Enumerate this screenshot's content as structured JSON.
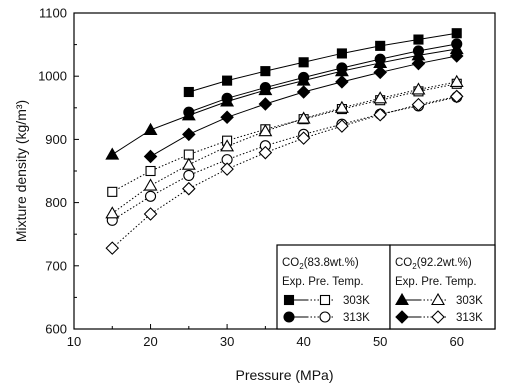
{
  "chart_data": {
    "type": "line",
    "xlabel": "Pressure (MPa)",
    "ylabel": "Mixture density (kg/m³)",
    "xlim": [
      10,
      65
    ],
    "ylim": [
      600,
      1100
    ],
    "xticks": [
      10,
      20,
      30,
      40,
      50,
      60
    ],
    "yticks": [
      600,
      700,
      800,
      900,
      1000,
      1100
    ],
    "grid": false,
    "legend": {
      "placement": "bottom-right",
      "groups": [
        {
          "title_main": "CO",
          "title_sub": "2",
          "title_rest": "(83.8wt.%)",
          "header": "Exp.  Pre.  Temp.",
          "rows": [
            "303K",
            "313K"
          ]
        },
        {
          "title_main": "CO",
          "title_sub": "2",
          "title_rest": "(92.2wt.%)",
          "header": "Exp.  Pre.  Temp.",
          "rows": [
            "303K",
            "313K"
          ]
        }
      ]
    },
    "series": [
      {
        "composition": "83.8wt.%",
        "temperature": "303K",
        "kind": "Exp.",
        "marker": "square",
        "filled": true,
        "line": "solid",
        "x": [
          25,
          30,
          35,
          40,
          45,
          50,
          55,
          60
        ],
        "y": [
          975,
          993,
          1008,
          1022,
          1036,
          1048,
          1058,
          1068
        ]
      },
      {
        "composition": "83.8wt.%",
        "temperature": "303K",
        "kind": "Pre.",
        "marker": "square",
        "filled": false,
        "line": "dotted",
        "x": [
          15,
          20,
          25,
          30,
          35,
          40,
          45,
          50,
          55,
          60
        ],
        "y": [
          817,
          850,
          876,
          898,
          916,
          932,
          948,
          962,
          976,
          988
        ]
      },
      {
        "composition": "83.8wt.%",
        "temperature": "313K",
        "kind": "Exp.",
        "marker": "circle",
        "filled": true,
        "line": "solid",
        "x": [
          25,
          30,
          35,
          40,
          45,
          50,
          55,
          60
        ],
        "y": [
          943,
          965,
          982,
          998,
          1013,
          1027,
          1040,
          1051
        ]
      },
      {
        "composition": "83.8wt.%",
        "temperature": "313K",
        "kind": "Pre.",
        "marker": "circle",
        "filled": false,
        "line": "dotted",
        "x": [
          15,
          20,
          25,
          30,
          35,
          40,
          45,
          50,
          55,
          60
        ],
        "y": [
          772,
          810,
          843,
          868,
          890,
          908,
          924,
          940,
          953,
          967
        ]
      },
      {
        "composition": "92.2wt.%",
        "temperature": "303K",
        "kind": "Exp.",
        "marker": "triangle",
        "filled": true,
        "line": "solid",
        "x": [
          15,
          20,
          25,
          30,
          35,
          40,
          45,
          50,
          55,
          60
        ],
        "y": [
          876,
          915,
          938,
          960,
          978,
          993,
          1008,
          1021,
          1033,
          1043
        ]
      },
      {
        "composition": "92.2wt.%",
        "temperature": "303K",
        "kind": "Pre.",
        "marker": "triangle",
        "filled": false,
        "line": "dotted",
        "x": [
          15,
          20,
          25,
          30,
          35,
          40,
          45,
          50,
          55,
          60
        ],
        "y": [
          783,
          827,
          860,
          889,
          913,
          933,
          950,
          965,
          979,
          991
        ]
      },
      {
        "composition": "92.2wt.%",
        "temperature": "313K",
        "kind": "Exp.",
        "marker": "diamond",
        "filled": true,
        "line": "solid",
        "x": [
          20,
          25,
          30,
          35,
          40,
          45,
          50,
          55,
          60
        ],
        "y": [
          873,
          908,
          935,
          956,
          975,
          991,
          1006,
          1020,
          1032
        ]
      },
      {
        "composition": "92.2wt.%",
        "temperature": "313K",
        "kind": "Pre.",
        "marker": "diamond",
        "filled": false,
        "line": "dotted",
        "x": [
          15,
          20,
          25,
          30,
          35,
          40,
          45,
          50,
          55,
          60
        ],
        "y": [
          728,
          782,
          822,
          853,
          879,
          902,
          921,
          939,
          955,
          968
        ]
      }
    ]
  }
}
